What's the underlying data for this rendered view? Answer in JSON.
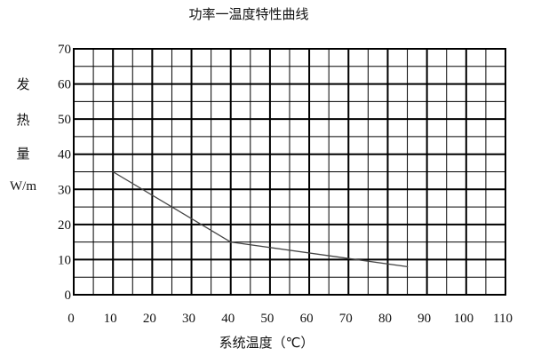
{
  "chart_data": {
    "type": "line",
    "title": "功率一温度特性曲线",
    "ylabel": [
      "发",
      "热",
      "量",
      "W/m"
    ],
    "xlabel": "系统温度（℃）",
    "xlim": [
      0,
      110
    ],
    "ylim": [
      0,
      70
    ],
    "x_ticks": [
      0,
      10,
      20,
      30,
      40,
      50,
      60,
      70,
      80,
      90,
      100,
      110
    ],
    "y_ticks": [
      0,
      10,
      20,
      30,
      40,
      50,
      60,
      70
    ],
    "grid": true,
    "grid_minor_step_x": 5,
    "grid_minor_step_y": 5,
    "series": [
      {
        "x": [
          10,
          40,
          85
        ],
        "y": [
          35,
          15,
          8
        ]
      }
    ],
    "colors": {
      "line": "#444444",
      "grid": "#000000"
    }
  }
}
